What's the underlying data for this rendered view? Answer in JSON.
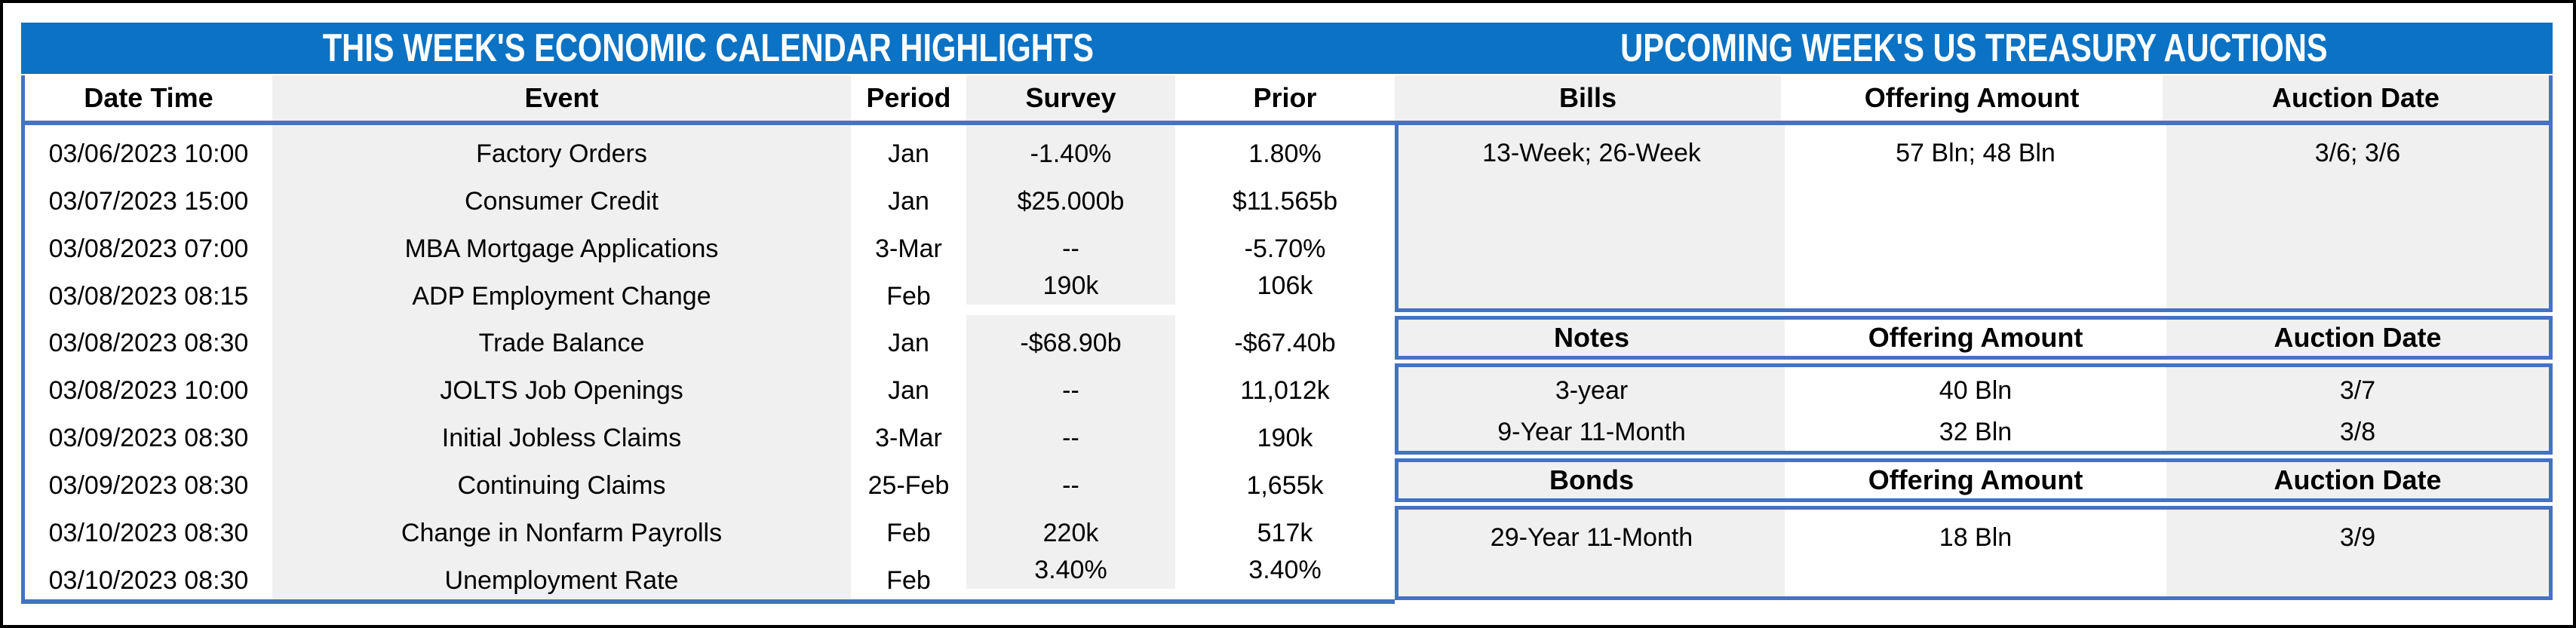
{
  "left_table": {
    "title": "THIS WEEK'S ECONOMIC CALENDAR HIGHLIGHTS",
    "columns": [
      "Date Time",
      "Event",
      "Period",
      "Survey",
      "Prior"
    ],
    "rows": [
      {
        "date_time": "03/06/2023 10:00",
        "event": "Factory Orders",
        "period": "Jan",
        "survey": "-1.40%",
        "prior": "1.80%"
      },
      {
        "date_time": "03/07/2023 15:00",
        "event": "Consumer Credit",
        "period": "Jan",
        "survey": "$25.000b",
        "prior": "$11.565b"
      },
      {
        "date_time": "03/08/2023 07:00",
        "event": "MBA Mortgage Applications",
        "period": "3-Mar",
        "survey": "--",
        "prior": "-5.70%"
      },
      {
        "date_time": "03/08/2023 08:15",
        "event": "ADP Employment Change",
        "period": "Feb",
        "survey": "190k",
        "prior": "106k"
      },
      {
        "date_time": "03/08/2023 08:30",
        "event": "Trade Balance",
        "period": "Jan",
        "survey": "-$68.90b",
        "prior": "-$67.40b"
      },
      {
        "date_time": "03/08/2023 10:00",
        "event": "JOLTS Job Openings",
        "period": "Jan",
        "survey": "--",
        "prior": "11,012k"
      },
      {
        "date_time": "03/09/2023 08:30",
        "event": "Initial Jobless Claims",
        "period": "3-Mar",
        "survey": "--",
        "prior": "190k"
      },
      {
        "date_time": "03/09/2023 08:30",
        "event": "Continuing Claims",
        "period": "25-Feb",
        "survey": "--",
        "prior": "1,655k"
      },
      {
        "date_time": "03/10/2023 08:30",
        "event": "Change in Nonfarm Payrolls",
        "period": "Feb",
        "survey": "220k",
        "prior": "517k"
      },
      {
        "date_time": "03/10/2023 08:30",
        "event": "Unemployment Rate",
        "period": "Feb",
        "survey": "3.40%",
        "prior": "3.40%"
      }
    ]
  },
  "right_table": {
    "title": "UPCOMING WEEK'S US TREASURY AUCTIONS",
    "sections": [
      {
        "name": "Bills",
        "columns": [
          "Bills",
          "Offering Amount",
          "Auction Date"
        ],
        "rows": [
          {
            "security": "13-Week; 26-Week",
            "offering_amount": "57 Bln; 48 Bln",
            "auction_date": "3/6; 3/6"
          }
        ]
      },
      {
        "name": "Notes",
        "columns": [
          "Notes",
          "Offering Amount",
          "Auction Date"
        ],
        "rows": [
          {
            "security": "3-year",
            "offering_amount": "40 Bln",
            "auction_date": "3/7"
          },
          {
            "security": "9-Year 11-Month",
            "offering_amount": "32 Bln",
            "auction_date": "3/8"
          }
        ]
      },
      {
        "name": "Bonds",
        "columns": [
          "Bonds",
          "Offering Amount",
          "Auction Date"
        ],
        "rows": [
          {
            "security": "29-Year 11-Month",
            "offering_amount": "18 Bln",
            "auction_date": "3/9"
          }
        ]
      }
    ]
  },
  "colors": {
    "title_bar": "#0B72C4",
    "title_text": "#FFFFFF",
    "border_blue": "#4472C4",
    "column_stripe": "#F0F0F0",
    "outer_frame": "#000000",
    "text": "#000000"
  }
}
